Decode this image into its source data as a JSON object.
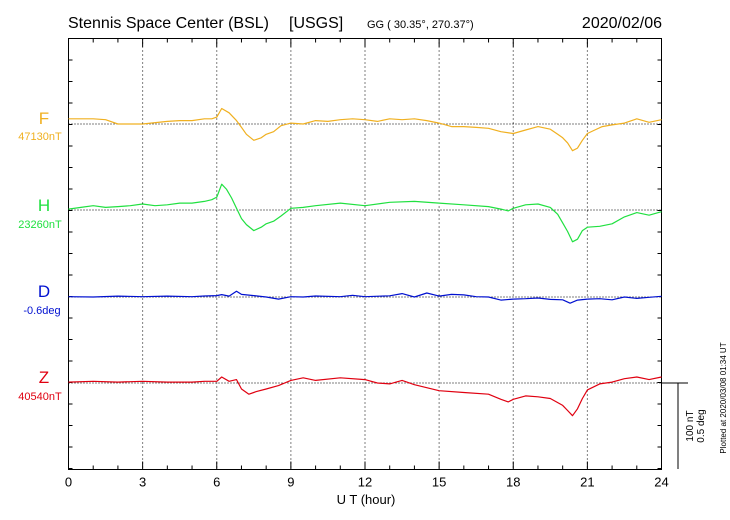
{
  "header": {
    "station": "Stennis Space Center (BSL)",
    "agency": "[USGS]",
    "coords": "GG ( 30.35°, 270.37°)",
    "date": "2020/02/06"
  },
  "footer": {
    "plotted_at": "Plotted at 2020/03/08 01:34 UT",
    "scale_nt": "100 nT",
    "scale_deg": "0.5 deg"
  },
  "colors": {
    "F": "#f0b020",
    "H": "#20e040",
    "D": "#0010d0",
    "Z": "#e00010"
  },
  "chart_data": {
    "type": "line",
    "title": "Stennis Space Center (BSL) [USGS]",
    "xlabel": "U T (hour)",
    "ylabel": "",
    "xlim": [
      0,
      24
    ],
    "xticks": [
      "0",
      "3",
      "6",
      "9",
      "12",
      "15",
      "18",
      "21",
      "24"
    ],
    "grid": true,
    "series": [
      {
        "name": "F",
        "baseline_label": "47130nT",
        "unit": "nT",
        "baseline": 47130,
        "x": [
          0,
          1,
          1.5,
          2,
          3,
          4,
          4.5,
          5,
          5.5,
          5.8,
          6.0,
          6.2,
          6.5,
          6.8,
          7.0,
          7.2,
          7.5,
          7.8,
          8.0,
          8.3,
          8.6,
          9.0,
          9.5,
          10,
          10.5,
          11,
          11.5,
          12,
          12.5,
          13,
          13.5,
          14,
          14.5,
          15,
          15.5,
          16,
          16.5,
          17,
          17.5,
          18,
          18.5,
          19,
          19.5,
          19.8,
          20.0,
          20.2,
          20.4,
          20.6,
          20.8,
          21.0,
          21.3,
          21.6,
          22.0,
          22.5,
          23.0,
          23.5,
          24.0
        ],
        "values": [
          47136,
          47136,
          47135,
          47130,
          47130,
          47133,
          47134,
          47134,
          47136,
          47136,
          47138,
          47148,
          47143,
          47134,
          47126,
          47118,
          47111,
          47114,
          47118,
          47121,
          47128,
          47131,
          47130,
          47134,
          47133,
          47135,
          47136,
          47135,
          47133,
          47136,
          47135,
          47136,
          47134,
          47131,
          47127,
          47127,
          47126,
          47125,
          47121,
          47119,
          47123,
          47127,
          47124,
          47118,
          47114,
          47108,
          47099,
          47102,
          47111,
          47119,
          47123,
          47127,
          47129,
          47131,
          47136,
          47132,
          47135
        ]
      },
      {
        "name": "H",
        "baseline_label": "23260nT",
        "unit": "nT",
        "baseline": 23260,
        "x": [
          0,
          0.5,
          1,
          1.5,
          2,
          2.5,
          3,
          3.5,
          4,
          4.5,
          5,
          5.5,
          5.8,
          6.0,
          6.2,
          6.4,
          6.6,
          6.8,
          7.0,
          7.2,
          7.5,
          7.8,
          8.0,
          8.3,
          8.6,
          9.0,
          9.5,
          10,
          11,
          12,
          13,
          14,
          15,
          16,
          17,
          17.5,
          17.8,
          18,
          18.5,
          19,
          19.5,
          19.8,
          20.0,
          20.2,
          20.4,
          20.6,
          20.8,
          21.0,
          21.5,
          22.0,
          22.5,
          23.0,
          23.5,
          24.0
        ],
        "values": [
          23261,
          23263,
          23265,
          23263,
          23264,
          23265,
          23267,
          23265,
          23266,
          23268,
          23268,
          23270,
          23272,
          23275,
          23290,
          23284,
          23274,
          23262,
          23250,
          23243,
          23236,
          23240,
          23244,
          23247,
          23253,
          23262,
          23263,
          23265,
          23268,
          23265,
          23269,
          23270,
          23268,
          23266,
          23264,
          23261,
          23259,
          23262,
          23266,
          23267,
          23263,
          23255,
          23245,
          23235,
          23223,
          23226,
          23236,
          23240,
          23241,
          23244,
          23252,
          23257,
          23254,
          23258
        ]
      },
      {
        "name": "D",
        "baseline_label": "-0.6deg",
        "unit": "deg",
        "baseline": -0.6,
        "x": [
          0,
          1,
          2,
          3,
          4,
          5,
          5.5,
          6.0,
          6.2,
          6.5,
          6.8,
          7.0,
          7.5,
          8.0,
          8.5,
          9.0,
          9.5,
          10,
          11,
          11.5,
          12,
          13,
          13.5,
          14,
          14.5,
          15,
          15.5,
          16,
          16.5,
          17,
          17.5,
          18,
          18.5,
          19,
          19.5,
          20,
          20.3,
          20.6,
          21,
          21.5,
          22,
          22.5,
          23,
          23.5,
          24
        ],
        "values": [
          -0.598,
          -0.6,
          -0.595,
          -0.598,
          -0.595,
          -0.598,
          -0.594,
          -0.592,
          -0.586,
          -0.595,
          -0.566,
          -0.585,
          -0.592,
          -0.6,
          -0.612,
          -0.598,
          -0.6,
          -0.594,
          -0.598,
          -0.59,
          -0.598,
          -0.593,
          -0.58,
          -0.6,
          -0.577,
          -0.595,
          -0.585,
          -0.588,
          -0.598,
          -0.6,
          -0.618,
          -0.612,
          -0.61,
          -0.606,
          -0.614,
          -0.616,
          -0.636,
          -0.618,
          -0.612,
          -0.61,
          -0.616,
          -0.6,
          -0.608,
          -0.602,
          -0.596
        ]
      },
      {
        "name": "Z",
        "baseline_label": "40540nT",
        "unit": "nT",
        "baseline": 40540,
        "x": [
          0,
          1,
          2,
          3,
          4,
          5,
          5.5,
          6.0,
          6.2,
          6.5,
          6.8,
          7.0,
          7.3,
          7.6,
          8.0,
          8.5,
          9.0,
          9.5,
          10,
          11,
          12,
          12.5,
          13,
          13.5,
          14,
          15,
          16,
          17,
          17.5,
          17.8,
          18,
          18.5,
          19,
          19.5,
          20.0,
          20.2,
          20.4,
          20.6,
          20.8,
          21.0,
          21.5,
          22.0,
          22.5,
          23.0,
          23.5,
          24
        ],
        "values": [
          40541,
          40542,
          40541,
          40542,
          40541,
          40541,
          40542,
          40542,
          40547,
          40542,
          40544,
          40533,
          40527,
          40530,
          40533,
          40537,
          40543,
          40546,
          40543,
          40546,
          40544,
          40540,
          40539,
          40543,
          40538,
          40531,
          40529,
          40527,
          40521,
          40518,
          40521,
          40525,
          40524,
          40522,
          40514,
          40508,
          40502,
          40510,
          40522,
          40532,
          40539,
          40541,
          40545,
          40547,
          40544,
          40547
        ]
      }
    ],
    "scale_bar": [
      "100 nT",
      "0.5 deg"
    ]
  }
}
